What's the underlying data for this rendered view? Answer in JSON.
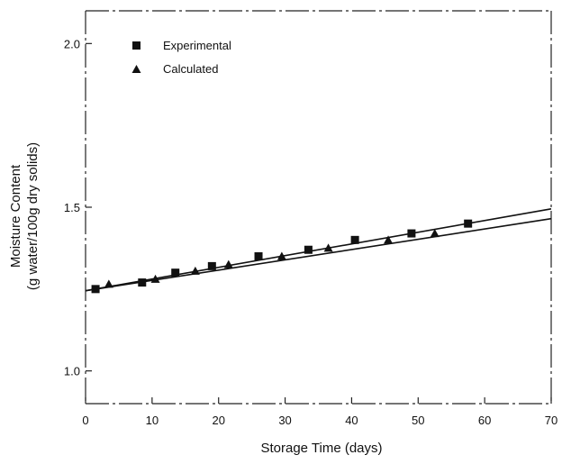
{
  "chart_data": {
    "type": "scatter",
    "xlabel": "Storage Time (days)",
    "ylabel_line1": "Moisture Content",
    "ylabel_line2": "(g water/100g dry solids)",
    "xlim": [
      0,
      70
    ],
    "ylim": [
      0.9,
      2.1
    ],
    "x_ticks": [
      0,
      10,
      20,
      30,
      40,
      50,
      60,
      70
    ],
    "y_ticks": [
      1.0,
      1.5,
      2.0
    ],
    "y_tick_labels": [
      "1.0",
      "1.5",
      "2.0"
    ],
    "grid": false,
    "legend_position": "top-left",
    "series": [
      {
        "name": "Experimental",
        "marker": "square",
        "x": [
          1.5,
          8.5,
          13.5,
          19,
          26,
          33.5,
          40.5,
          49,
          57.5
        ],
        "y": [
          1.25,
          1.27,
          1.3,
          1.32,
          1.35,
          1.37,
          1.4,
          1.42,
          1.45
        ],
        "fit_line": {
          "x": [
            0,
            70
          ],
          "y": [
            1.245,
            1.495
          ]
        }
      },
      {
        "name": "Calculated",
        "marker": "triangle",
        "x": [
          3.5,
          10.5,
          16.5,
          21.5,
          29.5,
          36.5,
          45.5,
          52.5
        ],
        "y": [
          1.265,
          1.28,
          1.305,
          1.325,
          1.35,
          1.375,
          1.4,
          1.42
        ],
        "fit_line": {
          "x": [
            0,
            70
          ],
          "y": [
            1.245,
            1.465
          ]
        }
      }
    ]
  }
}
